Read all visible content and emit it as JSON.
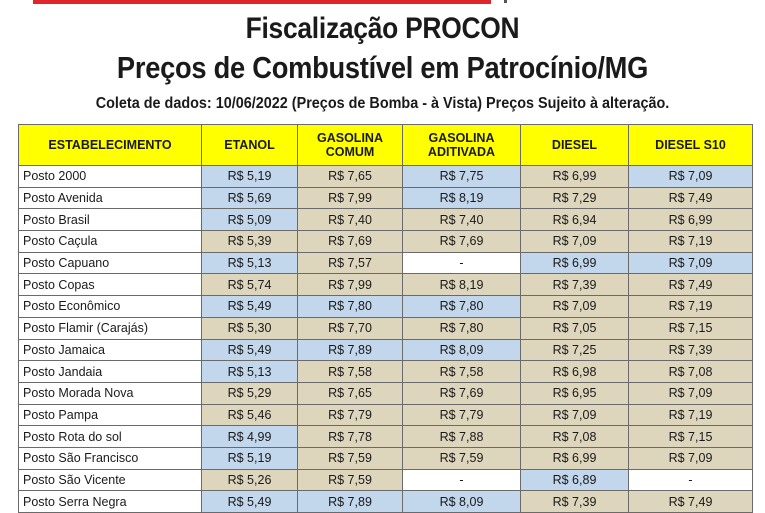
{
  "header": {
    "title_line1": "Fiscalização PROCON",
    "title_line2": "Preços de Combustível em Patrocínio/MG",
    "subtitle": "Coleta de dados: 10/06/2022 (Preços de Bomba - à Vista) Preços Sujeito à alteração."
  },
  "colors": {
    "header_bg": "#ffff00",
    "blue_cell": "#c2d6ec",
    "tan_cell": "#ddd6bd",
    "top_bar": "#e0262a"
  },
  "table": {
    "columns": {
      "c0": "ESTABELECIMENTO",
      "c1": "ETANOL",
      "c2a": "GASOLINA",
      "c2b": "COMUM",
      "c3a": "GASOLINA",
      "c3b": "ADITIVADA",
      "c4": "DIESEL",
      "c5": "DIESEL S10"
    },
    "rows": [
      {
        "name": "Posto 2000",
        "cells": [
          {
            "v": "R$ 5,19",
            "c": "blue"
          },
          {
            "v": "R$ 7,65",
            "c": "tan"
          },
          {
            "v": "R$ 7,75",
            "c": "blue"
          },
          {
            "v": "R$ 6,99",
            "c": "tan"
          },
          {
            "v": "R$ 7,09",
            "c": "blue"
          }
        ]
      },
      {
        "name": "Posto Avenida",
        "cells": [
          {
            "v": "R$ 5,69",
            "c": "blue"
          },
          {
            "v": "R$ 7,99",
            "c": "tan"
          },
          {
            "v": "R$ 8,19",
            "c": "blue"
          },
          {
            "v": "R$ 7,29",
            "c": "tan"
          },
          {
            "v": "R$ 7,49",
            "c": "tan"
          }
        ]
      },
      {
        "name": "Posto Brasil",
        "cells": [
          {
            "v": "R$ 5,09",
            "c": "blue"
          },
          {
            "v": "R$ 7,40",
            "c": "tan"
          },
          {
            "v": "R$ 7,40",
            "c": "tan"
          },
          {
            "v": "R$ 6,94",
            "c": "tan"
          },
          {
            "v": "R$ 6,99",
            "c": "tan"
          }
        ]
      },
      {
        "name": "Posto Caçula",
        "cells": [
          {
            "v": "R$ 5,39",
            "c": "tan"
          },
          {
            "v": "R$ 7,69",
            "c": "tan"
          },
          {
            "v": "R$ 7,69",
            "c": "tan"
          },
          {
            "v": "R$ 7,09",
            "c": "tan"
          },
          {
            "v": "R$ 7,19",
            "c": "tan"
          }
        ]
      },
      {
        "name": "Posto Capuano",
        "cells": [
          {
            "v": "R$ 5,13",
            "c": "blue"
          },
          {
            "v": "R$ 7,57",
            "c": "tan"
          },
          {
            "v": "-",
            "c": "white"
          },
          {
            "v": "R$ 6,99",
            "c": "blue"
          },
          {
            "v": "R$ 7,09",
            "c": "blue"
          }
        ]
      },
      {
        "name": "Posto Copas",
        "cells": [
          {
            "v": "R$ 5,74",
            "c": "tan"
          },
          {
            "v": "R$ 7,99",
            "c": "tan"
          },
          {
            "v": "R$ 8,19",
            "c": "tan"
          },
          {
            "v": "R$ 7,39",
            "c": "tan"
          },
          {
            "v": "R$ 7,49",
            "c": "tan"
          }
        ]
      },
      {
        "name": "Posto Econômico",
        "cells": [
          {
            "v": "R$ 5,49",
            "c": "blue"
          },
          {
            "v": "R$ 7,80",
            "c": "blue"
          },
          {
            "v": "R$ 7,80",
            "c": "blue"
          },
          {
            "v": "R$ 7,09",
            "c": "tan"
          },
          {
            "v": "R$ 7,19",
            "c": "tan"
          }
        ]
      },
      {
        "name": "Posto Flamir (Carajás)",
        "cells": [
          {
            "v": "R$ 5,30",
            "c": "tan"
          },
          {
            "v": "R$ 7,70",
            "c": "tan"
          },
          {
            "v": "R$ 7,80",
            "c": "tan"
          },
          {
            "v": "R$ 7,05",
            "c": "tan"
          },
          {
            "v": "R$ 7,15",
            "c": "tan"
          }
        ]
      },
      {
        "name": "Posto Jamaica",
        "cells": [
          {
            "v": "R$ 5,49",
            "c": "blue"
          },
          {
            "v": "R$ 7,89",
            "c": "blue"
          },
          {
            "v": "R$ 8,09",
            "c": "blue"
          },
          {
            "v": "R$ 7,25",
            "c": "tan"
          },
          {
            "v": "R$ 7,39",
            "c": "tan"
          }
        ]
      },
      {
        "name": "Posto Jandaia",
        "cells": [
          {
            "v": "R$ 5,13",
            "c": "blue"
          },
          {
            "v": "R$ 7,58",
            "c": "tan"
          },
          {
            "v": "R$ 7,58",
            "c": "tan"
          },
          {
            "v": "R$ 6,98",
            "c": "tan"
          },
          {
            "v": "R$ 7,08",
            "c": "tan"
          }
        ]
      },
      {
        "name": "Posto Morada Nova",
        "cells": [
          {
            "v": "R$ 5,29",
            "c": "tan"
          },
          {
            "v": "R$ 7,65",
            "c": "tan"
          },
          {
            "v": "R$ 7,69",
            "c": "tan"
          },
          {
            "v": "R$ 6,95",
            "c": "tan"
          },
          {
            "v": "R$ 7,09",
            "c": "tan"
          }
        ]
      },
      {
        "name": "Posto Pampa",
        "cells": [
          {
            "v": "R$ 5,46",
            "c": "tan"
          },
          {
            "v": "R$ 7,79",
            "c": "tan"
          },
          {
            "v": "R$ 7,79",
            "c": "tan"
          },
          {
            "v": "R$ 7,09",
            "c": "tan"
          },
          {
            "v": "R$ 7,19",
            "c": "tan"
          }
        ]
      },
      {
        "name": "Posto Rota do sol",
        "cells": [
          {
            "v": "R$ 4,99",
            "c": "blue"
          },
          {
            "v": "R$ 7,78",
            "c": "tan"
          },
          {
            "v": "R$ 7,88",
            "c": "tan"
          },
          {
            "v": "R$ 7,08",
            "c": "tan"
          },
          {
            "v": "R$ 7,15",
            "c": "tan"
          }
        ]
      },
      {
        "name": "Posto São Francisco",
        "cells": [
          {
            "v": "R$ 5,19",
            "c": "blue"
          },
          {
            "v": "R$ 7,59",
            "c": "tan"
          },
          {
            "v": "R$ 7,59",
            "c": "tan"
          },
          {
            "v": "R$ 6,99",
            "c": "tan"
          },
          {
            "v": "R$ 7,09",
            "c": "tan"
          }
        ]
      },
      {
        "name": "Posto São Vicente",
        "cells": [
          {
            "v": "R$ 5,26",
            "c": "tan"
          },
          {
            "v": "R$ 7,59",
            "c": "tan"
          },
          {
            "v": "-",
            "c": "white"
          },
          {
            "v": "R$ 6,89",
            "c": "blue"
          },
          {
            "v": "-",
            "c": "white"
          }
        ]
      },
      {
        "name": "Posto Serra Negra",
        "cells": [
          {
            "v": "R$ 5,49",
            "c": "blue"
          },
          {
            "v": "R$ 7,89",
            "c": "blue"
          },
          {
            "v": "R$ 8,09",
            "c": "blue"
          },
          {
            "v": "R$ 7,39",
            "c": "tan"
          },
          {
            "v": "R$ 7,49",
            "c": "tan"
          }
        ]
      }
    ]
  }
}
